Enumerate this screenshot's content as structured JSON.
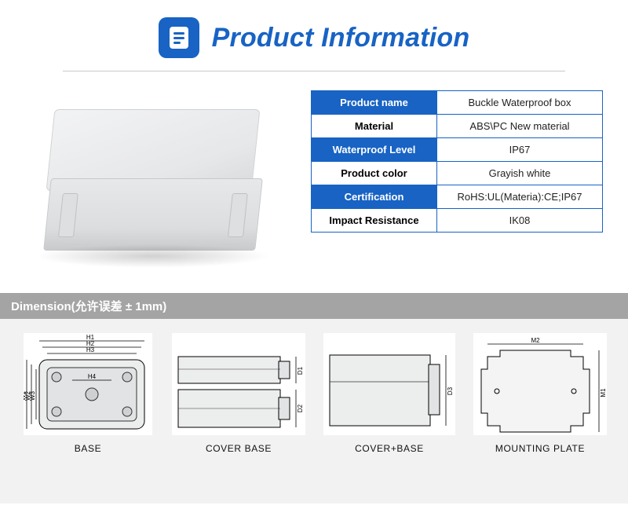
{
  "header": {
    "title": "Product Information",
    "icon_bg": "#1863c4",
    "title_color": "#1863c4"
  },
  "specs": {
    "rows": [
      {
        "key": "Product name",
        "value": "Buckle Waterproof box"
      },
      {
        "key": "Material",
        "value": "ABS\\PC New material"
      },
      {
        "key": "Waterproof Level",
        "value": "IP67"
      },
      {
        "key": "Product color",
        "value": "Grayish white"
      },
      {
        "key": "Certification",
        "value": "RoHS:UL(Materia):CE;IP67"
      },
      {
        "key": "Impact Resistance",
        "value": "IK08"
      }
    ],
    "header_bg": "#1863c4",
    "border_color": "#1863c4"
  },
  "dimension": {
    "bar_label": "Dimension(允许误差 ± 1mm)",
    "bar_bg": "#a4a4a4",
    "section_bg": "#f2f2f2",
    "items": [
      {
        "caption": "BASE",
        "h_labels": [
          "H1",
          "H2",
          "H3",
          "H4"
        ],
        "w_labels": [
          "W1",
          "W2",
          "W3"
        ]
      },
      {
        "caption": "COVER BASE",
        "side_labels": [
          "D1",
          "D2"
        ]
      },
      {
        "caption": "COVER+BASE",
        "side_labels": [
          "D3"
        ]
      },
      {
        "caption": "MOUNTING PLATE",
        "top_label": "M2",
        "side_label": "M1"
      }
    ]
  }
}
